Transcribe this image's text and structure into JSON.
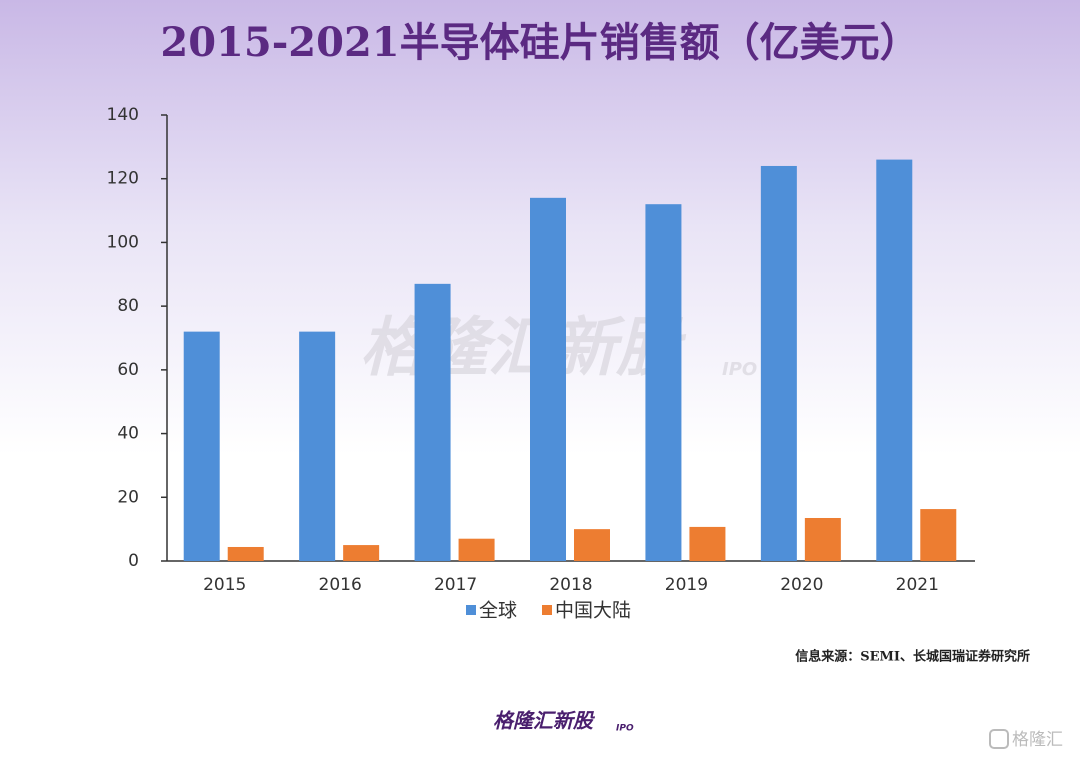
{
  "chart_data": {
    "type": "bar",
    "title": "2015-2021半导体硅片销售额（亿美元）",
    "categories": [
      "2015",
      "2016",
      "2017",
      "2018",
      "2019",
      "2020",
      "2021"
    ],
    "series": [
      {
        "name": "全球",
        "color": "#4f8fd8",
        "values": [
          72,
          72,
          87,
          114,
          112,
          124,
          126
        ]
      },
      {
        "name": "中国大陆",
        "color": "#ed7d31",
        "values": [
          4.4,
          5,
          7,
          10,
          10.7,
          13.5,
          16.3
        ]
      }
    ],
    "ylim": [
      0,
      140
    ],
    "yticks": [
      0,
      20,
      40,
      60,
      80,
      100,
      120,
      140
    ],
    "grid": false,
    "legend": "bottom",
    "source": "信息来源：SEMI、长城国瑞证券研究所",
    "watermark": "格隆汇新股",
    "watermark_tag": "IPO",
    "logo": "格隆汇新股",
    "logo_tag": "IPO",
    "corner_logo": "格隆汇"
  }
}
